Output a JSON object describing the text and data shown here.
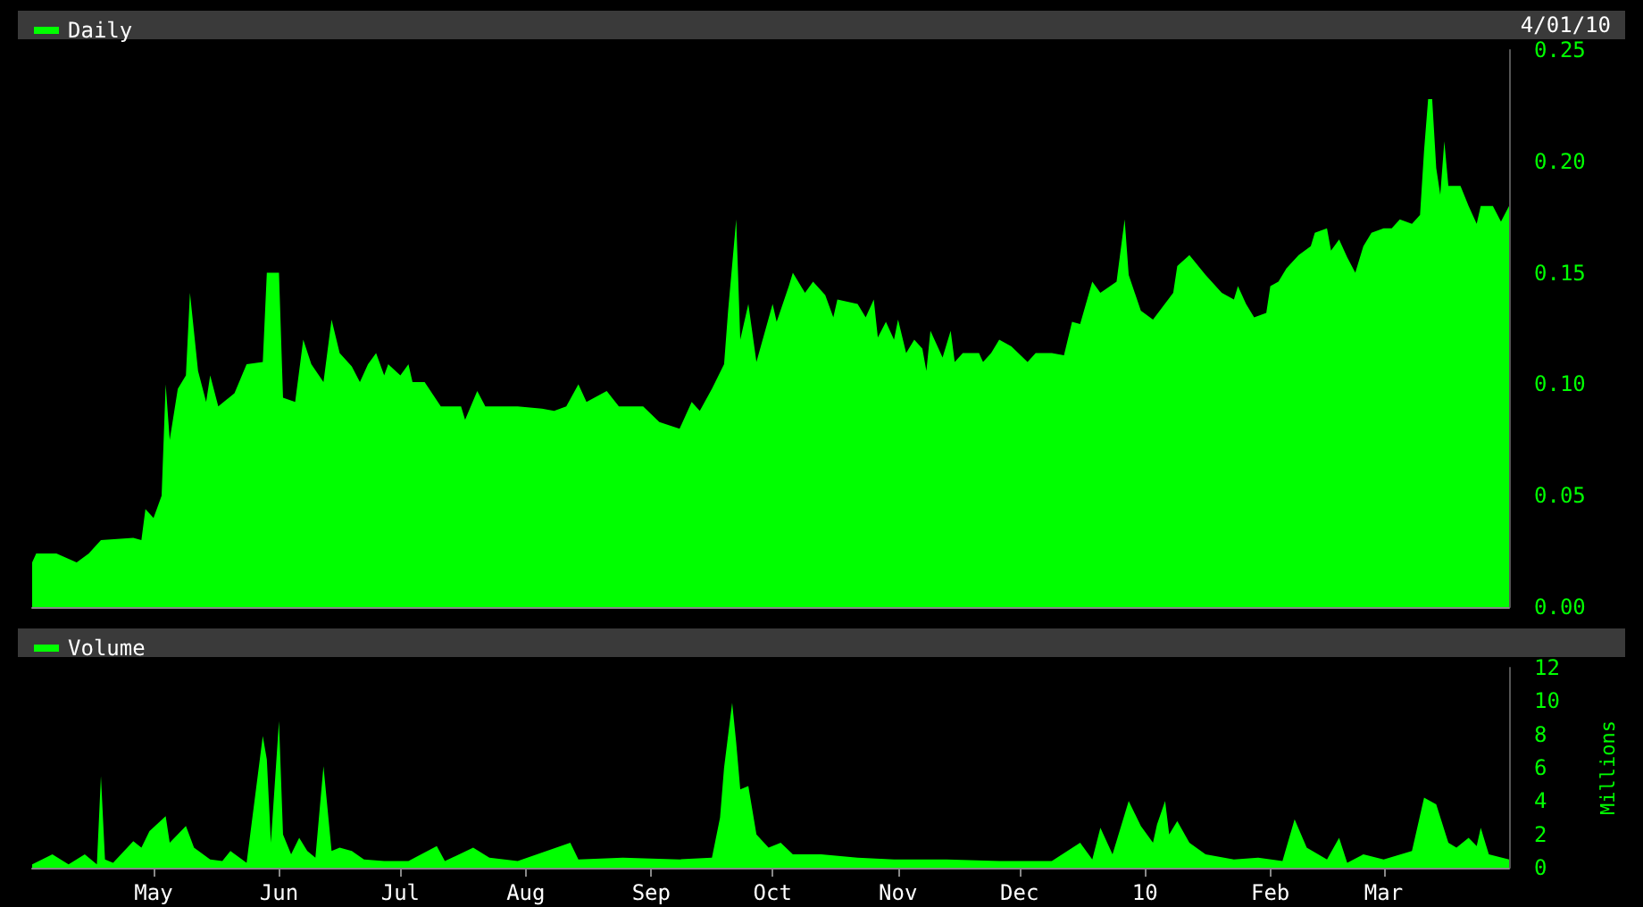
{
  "chart_data": [
    {
      "type": "area",
      "legend": "top left",
      "tick_labels": "y",
      "annotations": [
        "4/01/10"
      ],
      "xlim": [
        "2009-04-01",
        "2010-04-01"
      ],
      "ylim": [
        0,
        0.25
      ],
      "yticks": [
        {
          "value": 0,
          "label": "0.00"
        },
        {
          "value": 0.05,
          "label": "0.05"
        },
        {
          "value": 0.1,
          "label": "0.10"
        },
        {
          "value": 0.15,
          "label": "0.15"
        },
        {
          "value": 0.2,
          "label": "0.20"
        },
        {
          "value": 0.25,
          "label": "0.25"
        }
      ],
      "series": [
        {
          "name": "Daily",
          "color": "#00ff00",
          "x": [
            "2009-04-01",
            "2009-04-02",
            "2009-04-07",
            "2009-04-12",
            "2009-04-15",
            "2009-04-18",
            "2009-04-26",
            "2009-04-28",
            "2009-04-29",
            "2009-05-01",
            "2009-05-03",
            "2009-05-04",
            "2009-05-05",
            "2009-05-07",
            "2009-05-09",
            "2009-05-10",
            "2009-05-12",
            "2009-05-14",
            "2009-05-15",
            "2009-05-17",
            "2009-05-21",
            "2009-05-24",
            "2009-05-28",
            "2009-05-29",
            "2009-06-01",
            "2009-06-02",
            "2009-06-05",
            "2009-06-07",
            "2009-06-09",
            "2009-06-12",
            "2009-06-14",
            "2009-06-16",
            "2009-06-19",
            "2009-06-21",
            "2009-06-23",
            "2009-06-25",
            "2009-06-27",
            "2009-06-28",
            "2009-07-01",
            "2009-07-03",
            "2009-07-04",
            "2009-07-07",
            "2009-07-11",
            "2009-07-16",
            "2009-07-17",
            "2009-07-20",
            "2009-07-22",
            "2009-07-30",
            "2009-08-05",
            "2009-08-08",
            "2009-08-11",
            "2009-08-14",
            "2009-08-16",
            "2009-08-21",
            "2009-08-24",
            "2009-08-30",
            "2009-09-03",
            "2009-09-08",
            "2009-09-11",
            "2009-09-13",
            "2009-09-16",
            "2009-09-19",
            "2009-09-20",
            "2009-09-22",
            "2009-09-23",
            "2009-09-25",
            "2009-09-27",
            "2009-10-01",
            "2009-10-02",
            "2009-10-05",
            "2009-10-06",
            "2009-10-09",
            "2009-10-11",
            "2009-10-14",
            "2009-10-16",
            "2009-10-17",
            "2009-10-22",
            "2009-10-24",
            "2009-10-26",
            "2009-10-27",
            "2009-10-29",
            "2009-10-31",
            "2009-11-01",
            "2009-11-03",
            "2009-11-05",
            "2009-11-07",
            "2009-11-08",
            "2009-11-09",
            "2009-11-12",
            "2009-11-14",
            "2009-11-15",
            "2009-11-17",
            "2009-11-21",
            "2009-11-22",
            "2009-11-24",
            "2009-11-26",
            "2009-11-29",
            "2009-12-03",
            "2009-12-05",
            "2009-12-09",
            "2009-12-12",
            "2009-12-14",
            "2009-12-16",
            "2009-12-19",
            "2009-12-21",
            "2009-12-25",
            "2009-12-27",
            "2009-12-28",
            "2009-12-31",
            "2010-01-03",
            "2010-01-08",
            "2010-01-09",
            "2010-01-12",
            "2010-01-16",
            "2010-01-20",
            "2010-01-23",
            "2010-01-24",
            "2010-01-26",
            "2010-01-28",
            "2010-01-31",
            "2010-02-01",
            "2010-02-03",
            "2010-02-05",
            "2010-02-08",
            "2010-02-11",
            "2010-02-12",
            "2010-02-15",
            "2010-02-16",
            "2010-02-18",
            "2010-02-20",
            "2010-02-22",
            "2010-02-24",
            "2010-02-26",
            "2010-03-01",
            "2010-03-03",
            "2010-03-05",
            "2010-03-08",
            "2010-03-10",
            "2010-03-11",
            "2010-03-12",
            "2010-03-13",
            "2010-03-14",
            "2010-03-15",
            "2010-03-16",
            "2010-03-17",
            "2010-03-20",
            "2010-03-22",
            "2010-03-24",
            "2010-03-25",
            "2010-03-28",
            "2010-03-30",
            "2010-04-01"
          ],
          "values": [
            0.02,
            0.024,
            0.024,
            0.02,
            0.024,
            0.03,
            0.031,
            0.03,
            0.044,
            0.04,
            0.05,
            0.1,
            0.075,
            0.098,
            0.104,
            0.141,
            0.106,
            0.092,
            0.104,
            0.09,
            0.096,
            0.109,
            0.11,
            0.15,
            0.15,
            0.094,
            0.092,
            0.12,
            0.109,
            0.101,
            0.129,
            0.114,
            0.108,
            0.101,
            0.109,
            0.114,
            0.104,
            0.109,
            0.104,
            0.109,
            0.101,
            0.101,
            0.09,
            0.09,
            0.084,
            0.097,
            0.09,
            0.09,
            0.089,
            0.088,
            0.09,
            0.1,
            0.092,
            0.097,
            0.09,
            0.09,
            0.083,
            0.08,
            0.092,
            0.088,
            0.098,
            0.109,
            0.133,
            0.174,
            0.12,
            0.136,
            0.11,
            0.136,
            0.128,
            0.144,
            0.15,
            0.141,
            0.146,
            0.14,
            0.13,
            0.138,
            0.136,
            0.13,
            0.138,
            0.121,
            0.128,
            0.12,
            0.129,
            0.114,
            0.12,
            0.116,
            0.106,
            0.124,
            0.112,
            0.124,
            0.11,
            0.114,
            0.114,
            0.11,
            0.114,
            0.12,
            0.117,
            0.11,
            0.114,
            0.114,
            0.113,
            0.128,
            0.127,
            0.146,
            0.141,
            0.146,
            0.174,
            0.149,
            0.133,
            0.129,
            0.141,
            0.153,
            0.158,
            0.149,
            0.141,
            0.138,
            0.144,
            0.136,
            0.13,
            0.132,
            0.144,
            0.146,
            0.152,
            0.158,
            0.162,
            0.168,
            0.17,
            0.16,
            0.165,
            0.157,
            0.15,
            0.162,
            0.168,
            0.17,
            0.17,
            0.174,
            0.172,
            0.176,
            0.205,
            0.228,
            0.228,
            0.197,
            0.185,
            0.209,
            0.189,
            0.189,
            0.18,
            0.172,
            0.18,
            0.18,
            0.173,
            0.18
          ]
        }
      ]
    },
    {
      "type": "area",
      "legend": "top left",
      "ylabel": "Millions",
      "xlim": [
        "2009-04-01",
        "2010-04-01"
      ],
      "xticks": [
        {
          "value": "2009-05-01",
          "label": "May"
        },
        {
          "value": "2009-06-01",
          "label": "Jun"
        },
        {
          "value": "2009-07-01",
          "label": "Jul"
        },
        {
          "value": "2009-08-01",
          "label": "Aug"
        },
        {
          "value": "2009-09-01",
          "label": "Sep"
        },
        {
          "value": "2009-10-01",
          "label": "Oct"
        },
        {
          "value": "2009-11-01",
          "label": "Nov"
        },
        {
          "value": "2009-12-01",
          "label": "Dec"
        },
        {
          "value": "2010-01-01",
          "label": "10"
        },
        {
          "value": "2010-02-01",
          "label": "Feb"
        },
        {
          "value": "2010-03-01",
          "label": "Mar"
        }
      ],
      "ylim": [
        0,
        12
      ],
      "yticks": [
        0,
        2,
        4,
        6,
        8,
        10,
        12
      ],
      "series": [
        {
          "name": "Volume",
          "color": "#00ff00",
          "x": [
            "2009-04-01",
            "2009-04-06",
            "2009-04-10",
            "2009-04-14",
            "2009-04-17",
            "2009-04-18",
            "2009-04-19",
            "2009-04-21",
            "2009-04-26",
            "2009-04-28",
            "2009-04-30",
            "2009-05-04",
            "2009-05-05",
            "2009-05-09",
            "2009-05-11",
            "2009-05-15",
            "2009-05-18",
            "2009-05-20",
            "2009-05-24",
            "2009-05-28",
            "2009-05-29",
            "2009-05-30",
            "2009-06-01",
            "2009-06-02",
            "2009-06-04",
            "2009-06-06",
            "2009-06-08",
            "2009-06-10",
            "2009-06-12",
            "2009-06-14",
            "2009-06-16",
            "2009-06-19",
            "2009-06-22",
            "2009-06-27",
            "2009-07-03",
            "2009-07-10",
            "2009-07-12",
            "2009-07-19",
            "2009-07-23",
            "2009-07-30",
            "2009-08-12",
            "2009-08-14",
            "2009-08-25",
            "2009-09-08",
            "2009-09-16",
            "2009-09-18",
            "2009-09-19",
            "2009-09-21",
            "2009-09-22",
            "2009-09-23",
            "2009-09-25",
            "2009-09-27",
            "2009-09-30",
            "2009-10-03",
            "2009-10-06",
            "2009-10-13",
            "2009-10-22",
            "2009-10-31",
            "2009-11-13",
            "2009-11-26",
            "2009-12-09",
            "2009-12-16",
            "2009-12-19",
            "2009-12-21",
            "2009-12-24",
            "2009-12-28",
            "2009-12-31",
            "2010-01-03",
            "2010-01-04",
            "2010-01-06",
            "2010-01-07",
            "2010-01-09",
            "2010-01-12",
            "2010-01-16",
            "2010-01-23",
            "2010-01-29",
            "2010-02-04",
            "2010-02-07",
            "2010-02-10",
            "2010-02-15",
            "2010-02-18",
            "2010-02-20",
            "2010-02-24",
            "2010-03-01",
            "2010-03-08",
            "2010-03-11",
            "2010-03-14",
            "2010-03-17",
            "2010-03-19",
            "2010-03-22",
            "2010-03-24",
            "2010-03-25",
            "2010-03-27",
            "2010-04-01"
          ],
          "values": [
            0.2,
            0.8,
            0.2,
            0.8,
            0.2,
            5.5,
            0.5,
            0.3,
            1.6,
            1.2,
            2.2,
            3.1,
            1.5,
            2.5,
            1.2,
            0.5,
            0.4,
            1.0,
            0.3,
            7.9,
            6.5,
            1.5,
            8.8,
            2.0,
            0.8,
            1.8,
            1.0,
            0.6,
            6.1,
            1.0,
            1.2,
            1.0,
            0.5,
            0.4,
            0.4,
            1.3,
            0.4,
            1.2,
            0.6,
            0.4,
            1.5,
            0.5,
            0.6,
            0.5,
            0.6,
            3.0,
            6.0,
            9.9,
            7.5,
            4.7,
            4.9,
            2.0,
            1.2,
            1.5,
            0.8,
            0.8,
            0.6,
            0.5,
            0.5,
            0.4,
            0.4,
            1.5,
            0.5,
            2.4,
            0.8,
            4.0,
            2.5,
            1.5,
            2.6,
            4.0,
            2.0,
            2.8,
            1.5,
            0.8,
            0.5,
            0.6,
            0.4,
            2.9,
            1.2,
            0.5,
            1.8,
            0.3,
            0.8,
            0.5,
            1.0,
            4.2,
            3.8,
            1.5,
            1.2,
            1.8,
            1.3,
            2.4,
            0.8,
            0.5
          ]
        }
      ]
    }
  ]
}
